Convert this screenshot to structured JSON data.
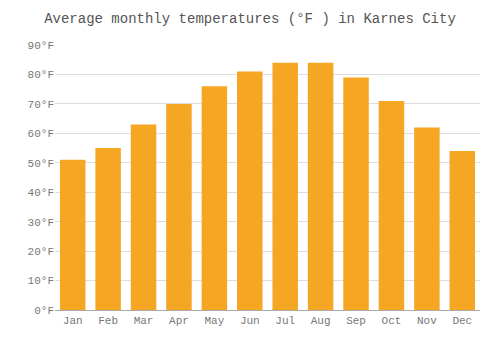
{
  "chart_data": {
    "type": "bar",
    "title": "Average monthly temperatures (°F ) in Karnes City",
    "categories": [
      "Jan",
      "Feb",
      "Mar",
      "Apr",
      "May",
      "Jun",
      "Jul",
      "Aug",
      "Sep",
      "Oct",
      "Nov",
      "Dec"
    ],
    "values": [
      51,
      55,
      63,
      70,
      76,
      81,
      84,
      84,
      79,
      71,
      62,
      54
    ],
    "color": "#F5A623",
    "ylim": [
      0,
      90
    ],
    "yticks": [
      {
        "value": 0,
        "label": "0°F"
      },
      {
        "value": 10,
        "label": "10°F"
      },
      {
        "value": 20,
        "label": "20°F"
      },
      {
        "value": 30,
        "label": "30°F"
      },
      {
        "value": 40,
        "label": "40°F"
      },
      {
        "value": 50,
        "label": "50°F"
      },
      {
        "value": 60,
        "label": "60°F"
      },
      {
        "value": 70,
        "label": "70°F"
      },
      {
        "value": 80,
        "label": "80°F"
      },
      {
        "value": 90,
        "label": "90°F"
      }
    ],
    "grid": true
  }
}
